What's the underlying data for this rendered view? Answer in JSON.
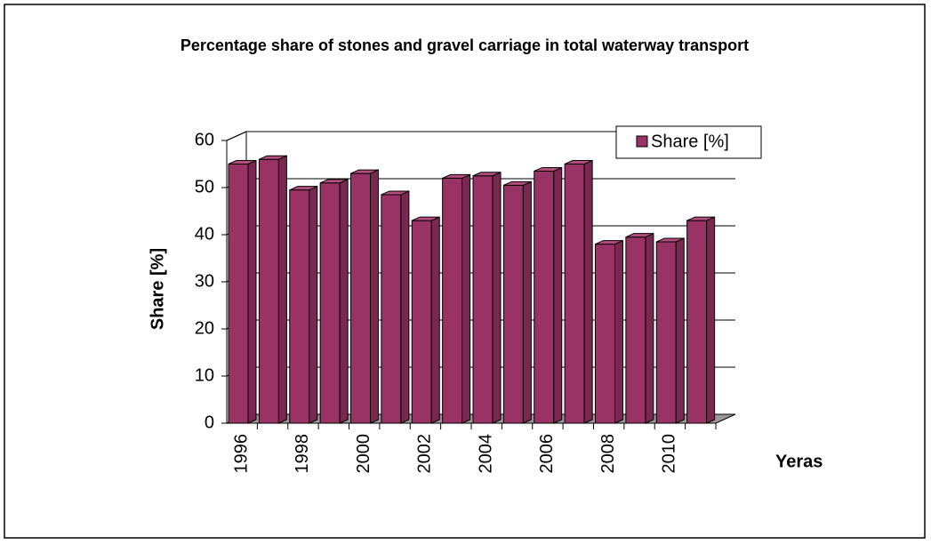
{
  "chart_data": {
    "type": "bar3d",
    "title": "Percentage share of stones and gravel carriage in total waterway transport",
    "x_label": "Yeras",
    "y_label": "Share [%]",
    "categories": [
      "1996",
      null,
      "1998",
      null,
      "2000",
      null,
      "2002",
      null,
      "2004",
      null,
      "2006",
      null,
      "2008",
      null,
      "2010",
      null
    ],
    "series": [
      {
        "name": "Share [%]",
        "color": "#993366",
        "values": [
          55,
          56,
          49.5,
          51,
          53,
          48.5,
          43,
          52,
          52.5,
          50.5,
          53.5,
          55,
          38,
          39.5,
          38.5,
          43
        ]
      }
    ],
    "ylim": [
      0,
      60
    ],
    "yticks": [
      0,
      10,
      20,
      30,
      40,
      50,
      60
    ],
    "grid": true,
    "legend": "upper right"
  }
}
